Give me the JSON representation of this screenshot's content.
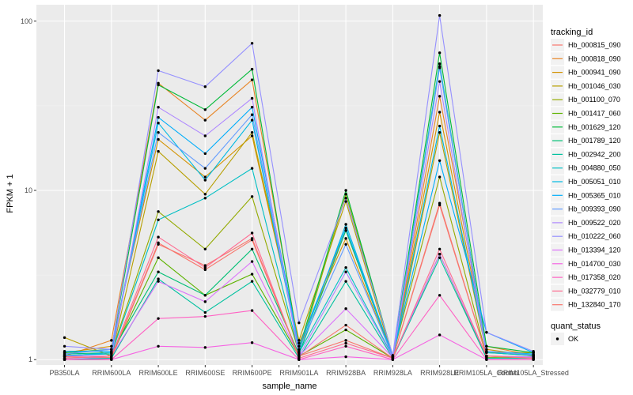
{
  "chart_data": {
    "type": "line",
    "xlabel": "sample_name",
    "ylabel": "FPKM + 1",
    "y_scale": "log10",
    "ylim": [
      0.93,
      125
    ],
    "y_ticks": [
      {
        "value": 1,
        "label": "1"
      },
      {
        "value": 10,
        "label": "10"
      },
      {
        "value": 100,
        "label": "100"
      }
    ],
    "categories": [
      "PB350LA",
      "RRIM600LA",
      "RRIM600LE",
      "RRIM600SE",
      "RRIM600PE",
      "RRIM901LA",
      "RRIM928BA",
      "RRIM928LA",
      "RRIM928LE",
      "RRIM105LA_Control",
      "RRIM105LA_Stressed"
    ],
    "legend_title": "tracking_id",
    "series": [
      {
        "name": "Hb_000815_090",
        "color": "#F8766D",
        "values": [
          1.0,
          1.02,
          4.8,
          3.6,
          5.2,
          1.05,
          1.3,
          1.02,
          8.2,
          1.05,
          1.02
        ]
      },
      {
        "name": "Hb_000818_090",
        "color": "#E88526",
        "values": [
          1.05,
          1.3,
          43,
          26,
          45,
          1.2,
          5.8,
          1.04,
          36,
          1.2,
          1.06
        ]
      },
      {
        "name": "Hb_000941_090",
        "color": "#D39200",
        "values": [
          1.1,
          1.2,
          20,
          12,
          21,
          1.25,
          5.2,
          1.03,
          29,
          1.15,
          1.05
        ]
      },
      {
        "name": "Hb_001046_030",
        "color": "#B79F00",
        "values": [
          1.35,
          1.05,
          17,
          9.5,
          22,
          1.3,
          8.6,
          1.02,
          22,
          1.1,
          1.1
        ]
      },
      {
        "name": "Hb_001100_070",
        "color": "#93AA00",
        "values": [
          1.05,
          1.1,
          7.5,
          4.5,
          9.2,
          1.1,
          9.5,
          1.05,
          12,
          1.05,
          1.04
        ]
      },
      {
        "name": "Hb_001417_060",
        "color": "#5EB300",
        "values": [
          1.02,
          1.05,
          4.0,
          2.4,
          3.2,
          1.05,
          1.5,
          1.02,
          4.2,
          1.03,
          1.02
        ]
      },
      {
        "name": "Hb_001629_120",
        "color": "#00BA38",
        "values": [
          1.1,
          1.15,
          42,
          30,
          52,
          1.15,
          10,
          1.05,
          65,
          1.2,
          1.1
        ]
      },
      {
        "name": "Hb_001789_120",
        "color": "#00BF74",
        "values": [
          1.08,
          1.1,
          3.3,
          2.4,
          4.5,
          1.08,
          5.8,
          1.04,
          54,
          1.1,
          1.06
        ]
      },
      {
        "name": "Hb_002942_200",
        "color": "#00C19F",
        "values": [
          1.0,
          1.02,
          3.0,
          1.9,
          2.9,
          1.02,
          2.9,
          1.02,
          4.0,
          1.02,
          1.02
        ]
      },
      {
        "name": "Hb_004880_050",
        "color": "#00BFC4",
        "values": [
          1.06,
          1.08,
          6.7,
          9.0,
          13.5,
          1.1,
          3.5,
          1.04,
          56,
          1.1,
          1.06
        ]
      },
      {
        "name": "Hb_005051_010",
        "color": "#00B9E3",
        "values": [
          1.05,
          1.1,
          25,
          11.5,
          26,
          1.12,
          6.3,
          1.04,
          24,
          1.12,
          1.08
        ]
      },
      {
        "name": "Hb_005365_010",
        "color": "#00ADFA",
        "values": [
          1.12,
          1.12,
          27,
          16.5,
          31,
          1.2,
          6.0,
          1.05,
          15,
          1.45,
          1.1
        ]
      },
      {
        "name": "Hb_009393_090",
        "color": "#619CFF",
        "values": [
          1.08,
          1.15,
          22,
          13.5,
          28,
          1.15,
          4.8,
          1.04,
          53,
          1.12,
          1.07
        ]
      },
      {
        "name": "Hb_009522_020",
        "color": "#AE87FF",
        "values": [
          1.02,
          1.03,
          31,
          21,
          35,
          1.05,
          3.3,
          1.03,
          44,
          1.05,
          1.04
        ]
      },
      {
        "name": "Hb_010222_060",
        "color": "#9590FF",
        "values": [
          1.2,
          1.15,
          51,
          41,
          74,
          1.65,
          9.0,
          1.06,
          108,
          1.45,
          1.12
        ]
      },
      {
        "name": "Hb_013394_120",
        "color": "#DB72FB",
        "values": [
          1.05,
          1.05,
          2.9,
          2.2,
          3.8,
          1.05,
          2.0,
          1.03,
          4.2,
          1.05,
          1.03
        ]
      },
      {
        "name": "Hb_014700_030",
        "color": "#F564E3",
        "values": [
          1.0,
          1.0,
          1.2,
          1.18,
          1.26,
          1.0,
          1.04,
          1.0,
          1.4,
          1.0,
          1.0
        ]
      },
      {
        "name": "Hb_017358_020",
        "color": "#FF61C3",
        "values": [
          1.0,
          1.0,
          1.75,
          1.8,
          1.95,
          1.0,
          1.2,
          1.0,
          2.4,
          1.0,
          1.0
        ]
      },
      {
        "name": "Hb_032779_010",
        "color": "#FF6C91",
        "values": [
          1.02,
          1.05,
          5.3,
          3.5,
          5.6,
          1.02,
          1.25,
          1.02,
          4.5,
          1.05,
          1.02
        ]
      },
      {
        "name": "Hb_132840_170",
        "color": "#F8766D",
        "values": [
          1.04,
          1.03,
          4.9,
          3.4,
          5.1,
          1.04,
          1.6,
          1.02,
          8.4,
          1.05,
          1.02
        ]
      }
    ],
    "point_legend_title": "quant_status",
    "point_legend_items": [
      "OK"
    ],
    "grid": true,
    "panel_background": "#EBEBEB",
    "legend_position": "right"
  }
}
